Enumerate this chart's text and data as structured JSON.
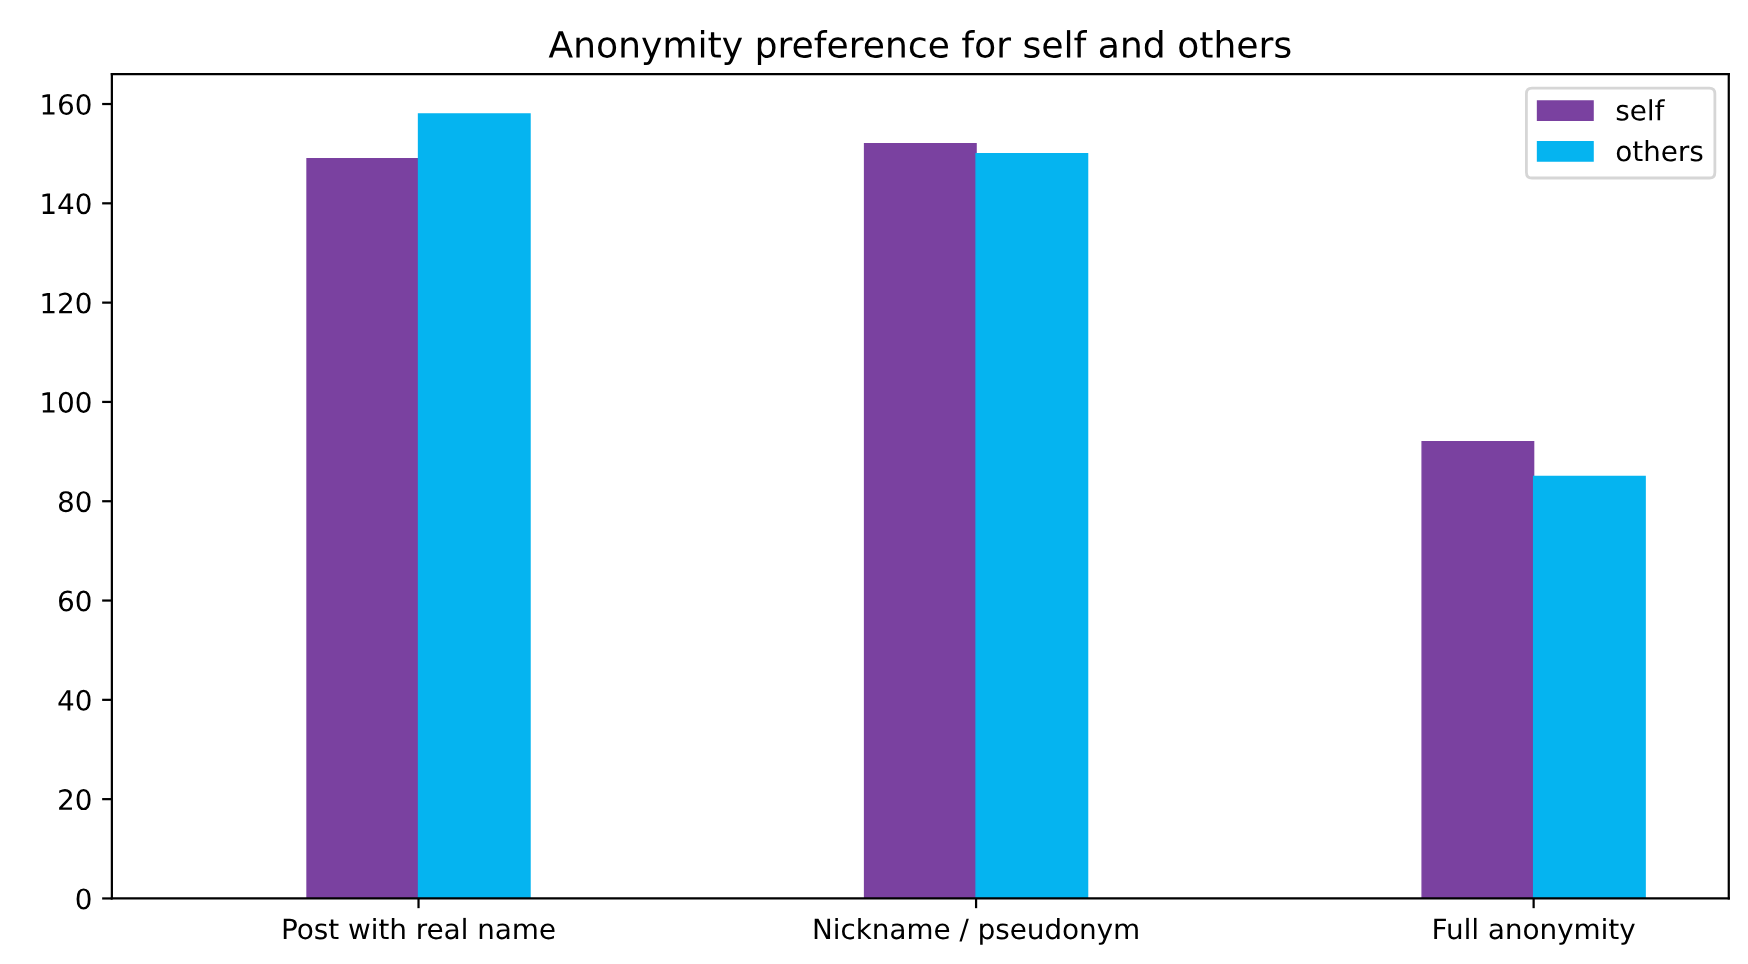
{
  "chart_data": {
    "type": "bar",
    "title": "Anonymity preference for self and others",
    "categories": [
      "Post with real name",
      "Nickname / pseudonym",
      "Full anonymity"
    ],
    "series": [
      {
        "name": "self",
        "color": "#7a41a0",
        "values": [
          149,
          152,
          92
        ]
      },
      {
        "name": "others",
        "color": "#05b4f0",
        "values": [
          158,
          150,
          85
        ]
      }
    ],
    "ylim": [
      0,
      166
    ],
    "yticks": [
      0,
      20,
      40,
      60,
      80,
      100,
      120,
      140,
      160
    ],
    "grid": false,
    "legend": "top right"
  }
}
